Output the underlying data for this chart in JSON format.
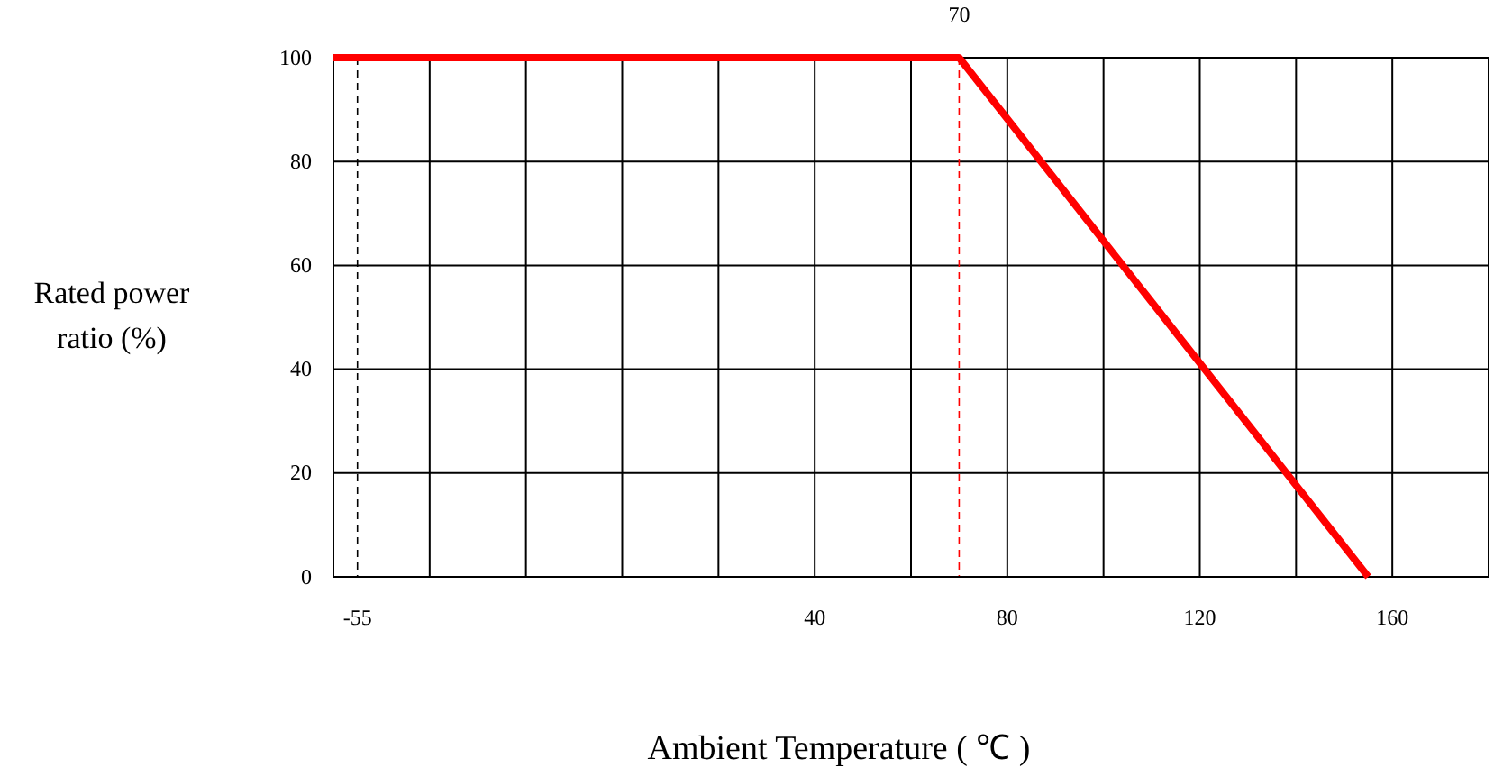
{
  "chart_data": {
    "type": "line",
    "xlabel": "Ambient Temperature ( ℃ )",
    "ylabel": "Rated power ratio (%)",
    "x": [
      -60,
      70,
      155
    ],
    "series": [
      {
        "color": "#ff0000",
        "values": [
          100,
          100,
          0
        ]
      }
    ],
    "xlim": [
      -60,
      180
    ],
    "xticks": [
      {
        "value": -60,
        "label": null
      },
      {
        "value": -55,
        "label": "-55"
      },
      {
        "value": -40,
        "label": null
      },
      {
        "value": -20,
        "label": null
      },
      {
        "value": 0,
        "label": null
      },
      {
        "value": 20,
        "label": null
      },
      40,
      {
        "value": 60,
        "label": null
      },
      80,
      {
        "value": 100,
        "label": null
      },
      120,
      {
        "value": 140,
        "label": null
      },
      160,
      {
        "value": 180,
        "label": null
      }
    ],
    "ylim": [
      0,
      100
    ],
    "yticks": [
      0,
      20,
      40,
      60,
      80,
      100
    ],
    "grid": true,
    "marker": "none",
    "line_style": "solid",
    "ref_lines": [
      {
        "axis": "x",
        "value": -55,
        "label": null,
        "color": "#000000",
        "line_style": "dashed"
      },
      {
        "axis": "x",
        "value": 70,
        "label": "70",
        "color": "#ff0000",
        "line_style": "dashed"
      }
    ]
  }
}
